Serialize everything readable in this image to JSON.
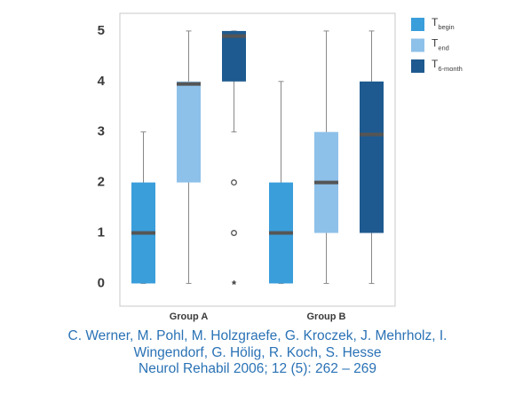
{
  "chart_data": {
    "type": "box",
    "categories": [
      "Group A",
      "Group B"
    ],
    "ylim": [
      -0.45,
      5.35
    ],
    "yticks": [
      0,
      1,
      2,
      3,
      4,
      5
    ],
    "grid": false,
    "series": [
      {
        "name": "T",
        "subscript": "begin",
        "color": "#3a9edb",
        "values": [
          {
            "min": 0,
            "q1": 0,
            "median": 1,
            "q3": 2,
            "max": 3
          },
          {
            "min": 0,
            "q1": 0,
            "median": 1,
            "q3": 2,
            "max": 4
          }
        ]
      },
      {
        "name": "T",
        "subscript": "end",
        "color": "#8ec1e9",
        "values": [
          {
            "min": 0,
            "q1": 2,
            "median": 3.95,
            "q3": 4,
            "max": 5
          },
          {
            "min": 0,
            "q1": 1,
            "median": 2,
            "q3": 3,
            "max": 5
          }
        ]
      },
      {
        "name": "T",
        "subscript": "6-month",
        "color": "#1e5a8f",
        "values": [
          {
            "min": 3,
            "q1": 4,
            "median": 4.9,
            "q3": 5,
            "max": 5,
            "outliers": [
              2,
              1
            ],
            "extremes": [
              0
            ]
          },
          {
            "min": 0,
            "q1": 1,
            "median": 2.95,
            "q3": 4,
            "max": 5
          }
        ]
      }
    ]
  },
  "caption": [
    "C. Werner, M. Pohl, M. Holzgraefe, G. Kroczek, J. Mehrholz, I.",
    "Wingendorf, G. Hölig, R. Koch, S. Hesse",
    "Neurol Rehabil 2006; 12 (5): 262 – 269"
  ]
}
